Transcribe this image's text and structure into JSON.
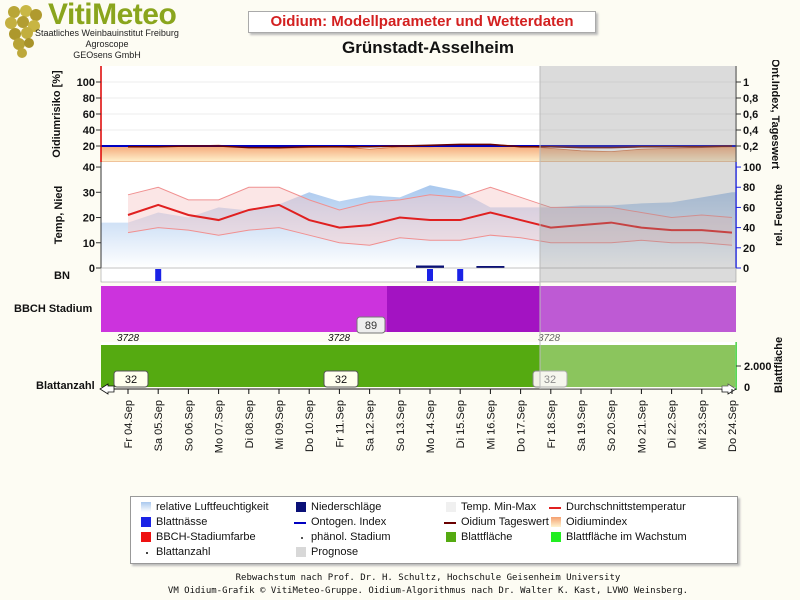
{
  "header": {
    "logo_text": "VitiMeteo",
    "logo_lines": [
      "Staatliches Weinbauinstitut Freiburg",
      "Agroscope",
      "GEOsens GmbH"
    ],
    "app_title": "Oidium: Modellparameter und Wetterdaten",
    "station": "Grünstadt-Asselheim"
  },
  "chart_data": [
    {
      "type": "area",
      "panel": "oidium",
      "ylabel_left": "Oidiumrisiko [%]",
      "ylabel_right": "Ont.Index, Tageswert",
      "yticks_left": [
        "20",
        "40",
        "60",
        "80",
        "100"
      ],
      "yticks_right": [
        "0,2",
        "0,4",
        "0,6",
        "0,8",
        "1"
      ],
      "ylim_left": [
        0,
        120
      ],
      "ylim_right": [
        0,
        1.2
      ],
      "x": [
        "Fr 04.Sep",
        "Sa 05.Sep",
        "So 06.Sep",
        "Mo 07.Sep",
        "Di 08.Sep",
        "Mi 09.Sep",
        "Do 10.Sep",
        "Fr 11.Sep",
        "Sa 12.Sep",
        "So 13.Sep",
        "Mo 14.Sep",
        "Di 15.Sep",
        "Mi 16.Sep",
        "Do 17.Sep",
        "Fr 18.Sep",
        "Sa 19.Sep",
        "So 20.Sep",
        "Mo 21.Sep",
        "Di 22.Sep",
        "Mi 23.Sep",
        "Do 24.Sep"
      ],
      "series": [
        {
          "name": "Oidiumindex",
          "values": [
            20,
            20,
            20,
            21,
            18,
            17,
            18,
            19,
            16,
            19,
            19,
            21,
            22,
            20,
            17,
            14,
            13,
            16,
            17,
            18,
            19
          ]
        },
        {
          "name": "Ontogen. Index",
          "values": [
            0.2,
            0.2,
            0.2,
            0.2,
            0.2,
            0.2,
            0.2,
            0.2,
            0.2,
            0.2,
            0.2,
            0.2,
            0.2,
            0.2,
            0.2,
            0.2,
            0.2,
            0.2,
            0.2,
            0.2,
            0.2
          ]
        },
        {
          "name": "Oidium Tageswert",
          "values": [
            0.19,
            0.19,
            0.2,
            0.2,
            0.18,
            0.18,
            0.19,
            0.19,
            0.19,
            0.2,
            0.21,
            0.22,
            0.22,
            0.19,
            0.19,
            0.18,
            0.18,
            0.19,
            0.19,
            0.19,
            0.2
          ]
        }
      ]
    },
    {
      "type": "line",
      "panel": "weather",
      "ylabel_left": "Temp, Nied",
      "ylabel_right": "rel. Feuchte",
      "yticks_left": [
        "0",
        "10",
        "20",
        "30",
        "40"
      ],
      "yticks_right": [
        "0",
        "20",
        "40",
        "60",
        "80",
        "100"
      ],
      "ylim_left": [
        0,
        42
      ],
      "ylim_right": [
        0,
        105
      ],
      "x": [
        "Fr 04.Sep",
        "Sa 05.Sep",
        "So 06.Sep",
        "Mo 07.Sep",
        "Di 08.Sep",
        "Mi 09.Sep",
        "Do 10.Sep",
        "Fr 11.Sep",
        "Sa 12.Sep",
        "So 13.Sep",
        "Mo 14.Sep",
        "Di 15.Sep",
        "Mi 16.Sep",
        "Do 17.Sep",
        "Fr 18.Sep",
        "Sa 19.Sep",
        "So 20.Sep",
        "Mo 21.Sep",
        "Di 22.Sep",
        "Mi 23.Sep",
        "Do 24.Sep"
      ],
      "series": [
        {
          "name": "Durchschnittstemperatur",
          "values": [
            21,
            25,
            21,
            19,
            23,
            25,
            19,
            16,
            17,
            20,
            19,
            19,
            22,
            19,
            16,
            17,
            18,
            16,
            15,
            15,
            14
          ]
        },
        {
          "name": "Temp. Max",
          "values": [
            29,
            32,
            27,
            27,
            32,
            32,
            27,
            23,
            26,
            27,
            29,
            28,
            32,
            28,
            24,
            24,
            24,
            22,
            20,
            21,
            20
          ]
        },
        {
          "name": "Temp. Min",
          "values": [
            14,
            16,
            15,
            13,
            15,
            16,
            13,
            10,
            9,
            12,
            11,
            11,
            13,
            12,
            10,
            10,
            10,
            11,
            10,
            10,
            9
          ]
        },
        {
          "name": "relative Luftfeuchtigkeit",
          "values": [
            45,
            55,
            50,
            60,
            57,
            63,
            75,
            66,
            72,
            70,
            82,
            76,
            60,
            60,
            60,
            62,
            62,
            64,
            65,
            70,
            75
          ]
        },
        {
          "name": "Niederschläge",
          "values": [
            0,
            0,
            0,
            0,
            0,
            0,
            0,
            0,
            0,
            0,
            1,
            0,
            0.5,
            0,
            0,
            0,
            0,
            0,
            0,
            0,
            0
          ]
        }
      ]
    },
    {
      "type": "bar",
      "panel": "BN",
      "label": "BN",
      "series": [
        {
          "name": "Blattnässe",
          "categories": [
            "Sa 05.Sep",
            "Mo 14.Sep",
            "Di 15.Sep"
          ],
          "values": [
            1,
            1,
            1
          ]
        }
      ]
    },
    {
      "type": "area",
      "panel": "bbch",
      "label": "BBCH Stadium",
      "badge": "89",
      "stage_marks": [
        "37",
        "28",
        "37",
        "28",
        "37",
        "28"
      ]
    },
    {
      "type": "area",
      "panel": "leaf",
      "label": "Blattanzahl",
      "ylabel_right": "Blattfläche",
      "yticks_right": [
        "0",
        "2.000"
      ],
      "leaf_counts": [
        "32",
        "32",
        "32"
      ]
    }
  ],
  "forecast_label": "Prognose",
  "legend": [
    {
      "label": "relative Luftfeuchtigkeit",
      "color": "#a9c8ee"
    },
    {
      "label": "Niederschläge",
      "color": "#0a1077"
    },
    {
      "label": "Temp. Min-Max",
      "color": "#f0f0f0"
    },
    {
      "label": "Durchschnittstemperatur",
      "color": "#e02020"
    },
    {
      "label": "Blattnässe",
      "color": "#1a22e6"
    },
    {
      "label": "Ontogen. Index",
      "color": "#0000c0"
    },
    {
      "label": "Oidium Tageswert",
      "color": "#6a0000"
    },
    {
      "label": "Oidiumindex",
      "color": "#f4a070"
    },
    {
      "label": "BBCH-Stadiumfarbe",
      "color": "#ee1111"
    },
    {
      "label": "phänol. Stadium",
      "color": "#555555"
    },
    {
      "label": "Blattfläche",
      "color": "#55aa11"
    },
    {
      "label": "Blattfläche im Wachstum",
      "color": "#22ee22"
    },
    {
      "label": "Blattanzahl",
      "color": "#444444"
    },
    {
      "label": "Prognose",
      "color": "#d8d8d8"
    }
  ],
  "footer": {
    "line1": "Rebwachstum nach Prof. Dr. H. Schultz, Hochschule Geisenheim University",
    "line2": "VM Oidium-Grafik © VitiMeteo-Gruppe. Oidium-Algorithmus nach Dr. Walter K. Kast, LVWO Weinsberg."
  }
}
